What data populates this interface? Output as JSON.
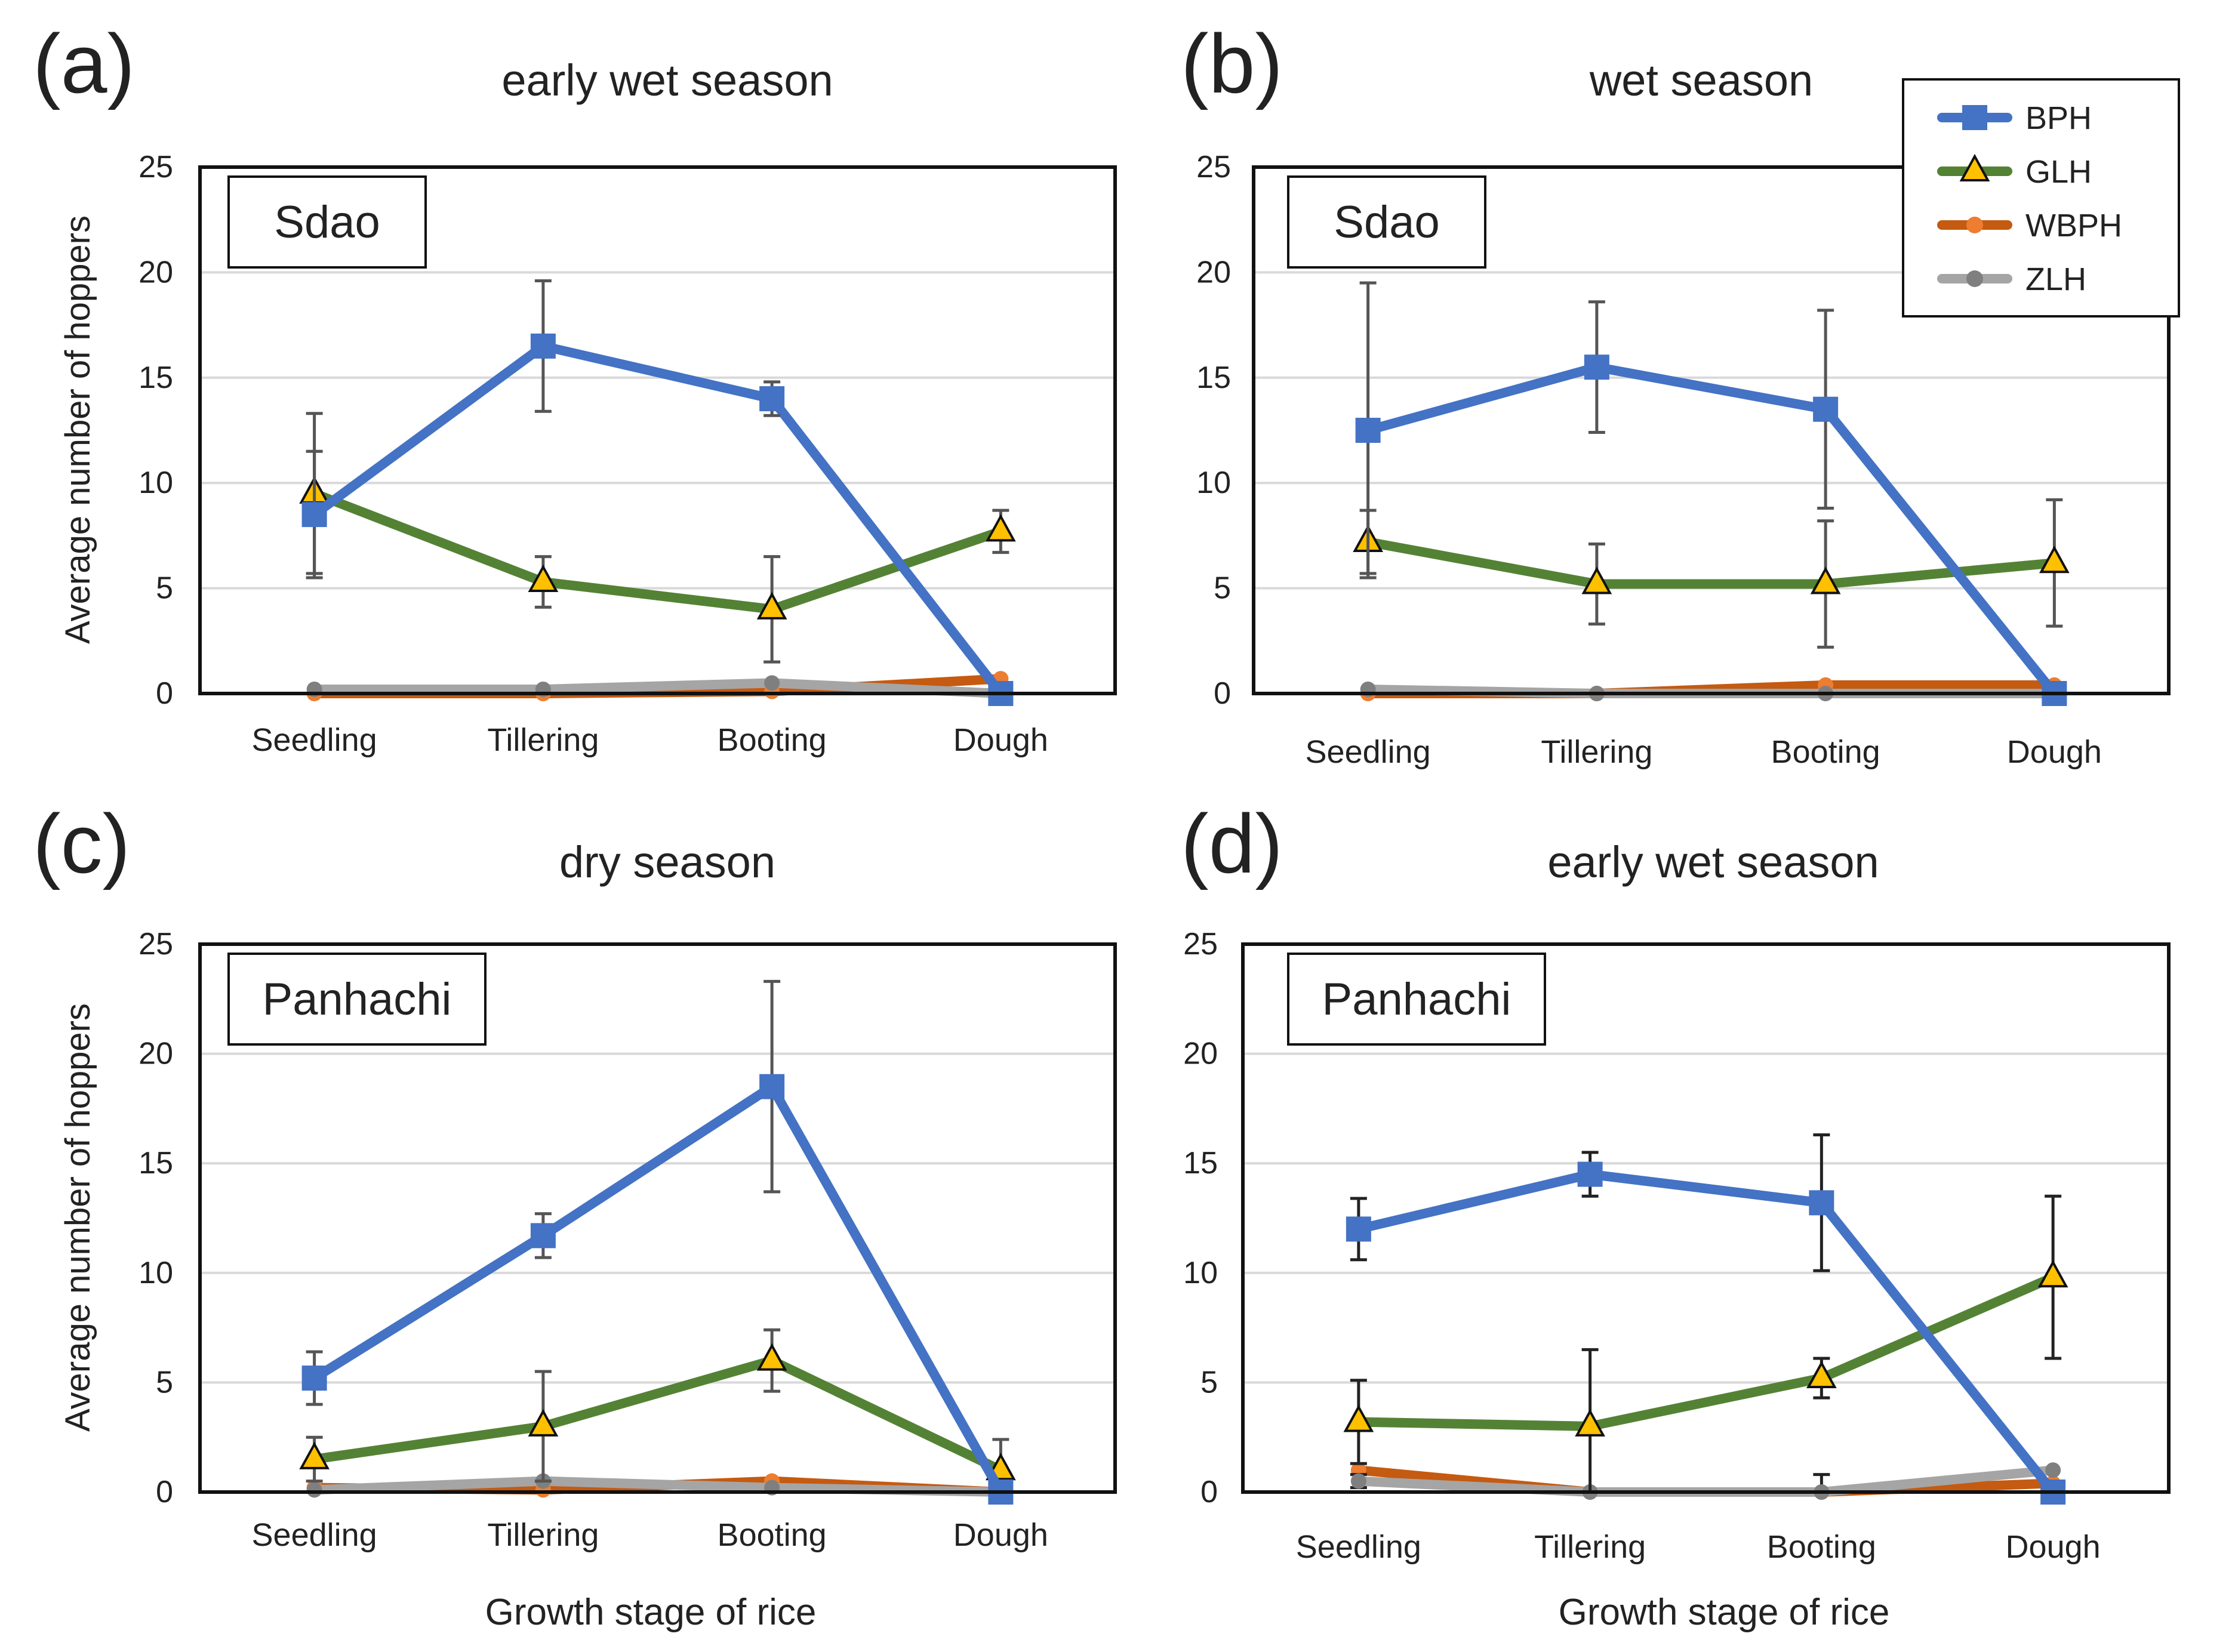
{
  "figure": {
    "ylabel": "Average number of hoppers",
    "xlabel": "Growth stage of rice"
  },
  "legend": {
    "items": [
      {
        "name": "BPH",
        "color": "#4472c4",
        "marker": "square"
      },
      {
        "name": "GLH",
        "color": "#548235",
        "marker": "triangle",
        "marker_fill": "#ffc000"
      },
      {
        "name": "WBPH",
        "color": "#c55a11",
        "marker": "circle",
        "marker_fill": "#ed7d31"
      },
      {
        "name": "ZLH",
        "color": "#a5a5a5",
        "marker": "circle",
        "marker_fill": "#7f7f7f"
      }
    ]
  },
  "chart_data": [
    {
      "type": "line",
      "panel_label": "(a)",
      "title": "early wet season",
      "site": "Sdao",
      "categories": [
        "Seedling",
        "Tillering",
        "Booting",
        "Dough"
      ],
      "ylim": [
        0,
        25
      ],
      "yticks": [
        0,
        5,
        10,
        15,
        20,
        25
      ],
      "grid": true,
      "series": [
        {
          "name": "BPH",
          "values": [
            8.5,
            16.5,
            14,
            0
          ],
          "err": [
            3,
            3.1,
            0.8,
            0
          ]
        },
        {
          "name": "GLH",
          "values": [
            9.5,
            5.3,
            4,
            7.7
          ],
          "err": [
            3.8,
            1.2,
            2.5,
            1
          ]
        },
        {
          "name": "WBPH",
          "values": [
            0,
            0,
            0.1,
            0.7
          ],
          "err": [
            0,
            0,
            0,
            0
          ]
        },
        {
          "name": "ZLH",
          "values": [
            0.2,
            0.2,
            0.5,
            0
          ],
          "err": [
            0,
            0,
            0,
            0
          ]
        }
      ]
    },
    {
      "type": "line",
      "panel_label": "(b)",
      "title": "wet season",
      "site": "Sdao",
      "categories": [
        "Seedling",
        "Tillering",
        "Booting",
        "Dough"
      ],
      "ylim": [
        0,
        25
      ],
      "yticks": [
        0,
        5,
        10,
        15,
        20,
        25
      ],
      "grid": true,
      "series": [
        {
          "name": "BPH",
          "values": [
            12.5,
            15.5,
            13.5,
            0
          ],
          "err": [
            7,
            3.1,
            4.7,
            0
          ]
        },
        {
          "name": "GLH",
          "values": [
            7.2,
            5.2,
            5.2,
            6.2
          ],
          "err": [
            1.5,
            1.9,
            3,
            3
          ]
        },
        {
          "name": "WBPH",
          "values": [
            0,
            0,
            0.4,
            0.4
          ],
          "err": [
            0,
            0,
            0,
            0
          ]
        },
        {
          "name": "ZLH",
          "values": [
            0.2,
            0,
            0,
            0
          ],
          "err": [
            0,
            0,
            0,
            0
          ]
        }
      ]
    },
    {
      "type": "line",
      "panel_label": "(c)",
      "title": "dry season",
      "site": "Panhachi",
      "categories": [
        "Seedling",
        "Tillering",
        "Booting",
        "Dough"
      ],
      "ylim": [
        0,
        25
      ],
      "yticks": [
        0,
        5,
        10,
        15,
        20,
        25
      ],
      "grid": true,
      "series": [
        {
          "name": "BPH",
          "values": [
            5.2,
            11.7,
            18.5,
            0
          ],
          "err": [
            1.2,
            1,
            4.8,
            0
          ]
        },
        {
          "name": "GLH",
          "values": [
            1.5,
            3,
            6,
            1
          ],
          "err": [
            1,
            2.5,
            1.4,
            1.4
          ]
        },
        {
          "name": "WBPH",
          "values": [
            0.2,
            0.1,
            0.5,
            0
          ],
          "err": [
            0,
            0,
            0,
            0
          ]
        },
        {
          "name": "ZLH",
          "values": [
            0.1,
            0.5,
            0.2,
            0
          ],
          "err": [
            0,
            0,
            0,
            0
          ]
        }
      ]
    },
    {
      "type": "line",
      "panel_label": "(d)",
      "title": "early wet season",
      "site": "Panhachi",
      "categories": [
        "Seedling",
        "Tillering",
        "Booting",
        "Dough"
      ],
      "ylim": [
        0,
        25
      ],
      "yticks": [
        0,
        5,
        10,
        15,
        20,
        25
      ],
      "grid": true,
      "series": [
        {
          "name": "BPH",
          "values": [
            12,
            14.5,
            13.2,
            0
          ],
          "err": [
            1.4,
            1,
            3.1,
            0
          ]
        },
        {
          "name": "GLH",
          "values": [
            3.2,
            3,
            5.2,
            9.8
          ],
          "err": [
            1.9,
            3.5,
            0.9,
            3.7
          ]
        },
        {
          "name": "WBPH",
          "values": [
            1,
            0,
            0,
            0.4
          ],
          "err": [
            0,
            0,
            0,
            0
          ]
        },
        {
          "name": "ZLH",
          "values": [
            0.5,
            0,
            0,
            1
          ],
          "err": [
            0.3,
            0,
            0.8,
            0
          ]
        }
      ]
    }
  ]
}
